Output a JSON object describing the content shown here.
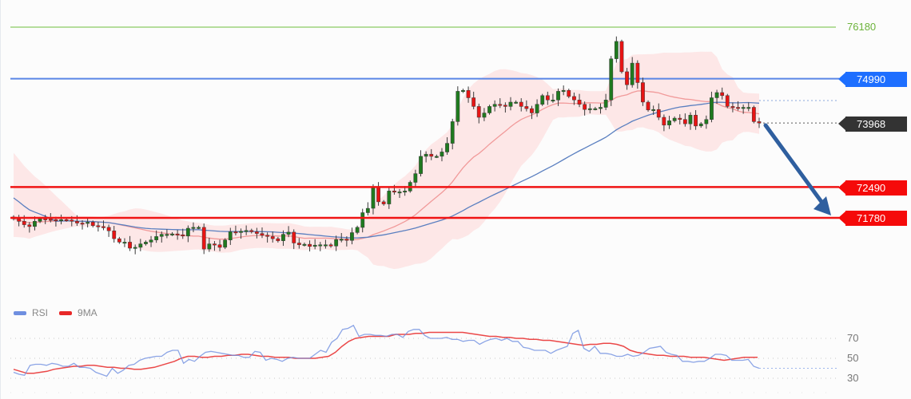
{
  "chart_data": [
    {
      "type": "candlestick",
      "title": "",
      "xlabel": "",
      "ylabel": "",
      "ylim": [
        70400,
        76700
      ],
      "grid": false,
      "overlays": [
        "Bollinger Bands (shaded pink)",
        "moving average (pink)",
        "moving average (blue)"
      ],
      "levels": [
        {
          "name": "target-high",
          "value": 76180,
          "color": "#7cc04b",
          "style": "line",
          "label_style": "plain"
        },
        {
          "name": "resistance",
          "value": 74990,
          "color": "#2f6fe0",
          "style": "line",
          "label_style": "tag"
        },
        {
          "name": "current-price",
          "value": 73968,
          "color": "#333333",
          "style": "dotted",
          "label_style": "tag"
        },
        {
          "name": "support-1",
          "value": 72490,
          "color": "#f01414",
          "style": "line",
          "label_style": "tag"
        },
        {
          "name": "support-2",
          "value": 71780,
          "color": "#f01414",
          "style": "line",
          "label_style": "tag"
        }
      ],
      "annotation": {
        "type": "arrow",
        "direction": "down",
        "from_price": 73968,
        "to_price": 71780,
        "color": "#2a5fa0"
      },
      "candles_close_approx": [
        71760,
        71700,
        71620,
        71580,
        71700,
        71760,
        71750,
        71740,
        71720,
        71740,
        71730,
        71700,
        71660,
        71650,
        71680,
        71600,
        71580,
        71560,
        71480,
        71300,
        71220,
        71220,
        71080,
        71100,
        71180,
        71220,
        71270,
        71350,
        71400,
        71400,
        71410,
        71390,
        71360,
        71540,
        71560,
        71560,
        71060,
        71180,
        71160,
        71100,
        71270,
        71460,
        71440,
        71470,
        71490,
        71460,
        71420,
        71380,
        71350,
        71300,
        71250,
        71400,
        71450,
        71200,
        71160,
        71170,
        71120,
        71150,
        71160,
        71160,
        71130,
        71280,
        71290,
        71260,
        71440,
        71560,
        71900,
        72000,
        72490,
        72150,
        72100,
        72400,
        72380,
        72380,
        72400,
        72600,
        72800,
        73200,
        73250,
        73200,
        73200,
        73300,
        73500,
        74000,
        74700,
        74720,
        74550,
        74350,
        74100,
        74200,
        74350,
        74400,
        74380,
        74350,
        74450,
        74450,
        74350,
        74300,
        74200,
        74400,
        74600,
        74500,
        74500,
        74700,
        74720,
        74580,
        74500,
        74400,
        74280,
        74300,
        74300,
        74330,
        74500,
        75450,
        75850,
        75150,
        74850,
        75350,
        74900,
        74450,
        74270,
        74280,
        74100,
        73920,
        74020,
        74080,
        74050,
        73950,
        74150,
        73900,
        73950,
        74050,
        74550,
        74670,
        74600,
        74350,
        74330,
        74320,
        74330,
        74330,
        74000,
        73968
      ]
    },
    {
      "type": "line",
      "title": "",
      "legend": [
        "RSI",
        "9MA"
      ],
      "legend_position": "top-left",
      "ylim": [
        20,
        80
      ],
      "yticks": [
        30,
        50,
        70
      ],
      "grid": "dotted at 30/50/70",
      "series": [
        {
          "name": "RSI",
          "color": "#6f8fe0",
          "values": [
            36,
            34,
            33,
            43,
            44,
            44,
            43,
            45,
            44,
            42,
            42,
            45,
            41,
            41,
            40,
            36,
            34,
            32,
            40,
            35,
            38,
            43,
            44,
            48,
            50,
            51,
            52,
            52,
            56,
            58,
            58,
            45,
            49,
            47,
            52,
            56,
            57,
            56,
            55,
            54,
            53,
            53,
            51,
            51,
            57,
            56,
            48,
            50,
            49,
            47,
            50,
            51,
            50,
            50,
            50,
            54,
            58,
            56,
            66,
            70,
            79,
            80,
            83,
            72,
            74,
            74,
            73,
            73,
            72,
            74,
            74,
            71,
            77,
            79,
            79,
            73,
            70,
            70,
            70,
            71,
            69,
            69,
            67,
            68,
            68,
            64,
            67,
            69,
            70,
            68,
            70,
            67,
            67,
            61,
            60,
            58,
            58,
            58,
            55,
            58,
            60,
            62,
            75,
            78,
            60,
            57,
            62,
            55,
            55,
            54,
            52,
            52,
            54,
            52,
            53,
            56,
            60,
            61,
            62,
            56,
            54,
            53,
            47,
            47,
            46,
            47,
            47,
            50,
            54,
            54,
            53,
            48,
            48,
            48,
            49,
            42,
            40
          ]
        },
        {
          "name": "9MA",
          "color": "#e82828",
          "values": [
            39,
            37,
            35,
            35,
            36,
            37,
            39,
            40,
            41,
            42,
            42,
            43,
            43,
            42,
            41,
            41,
            40,
            40,
            39,
            39,
            40,
            41,
            43,
            45,
            47,
            50,
            52,
            52,
            51,
            51,
            52,
            52,
            53,
            53,
            54,
            54,
            53,
            52,
            52,
            51,
            51,
            51,
            50,
            50,
            50,
            50,
            51,
            52,
            56,
            62,
            67,
            70,
            71,
            72,
            72,
            72,
            72,
            74,
            74,
            74,
            75,
            75,
            76,
            76,
            76,
            76,
            76,
            76,
            75,
            74,
            73,
            72,
            72,
            71,
            71,
            70,
            70,
            69,
            69,
            68,
            68,
            67,
            66,
            65,
            64,
            63,
            64,
            64,
            65,
            65,
            64,
            62,
            58,
            56,
            55,
            54,
            53,
            53,
            52,
            52,
            52,
            51,
            51,
            51,
            50,
            49,
            48,
            49,
            50,
            51,
            51,
            51
          ]
        }
      ]
    }
  ],
  "price_labels": {
    "target_high": "76180",
    "resistance": "74990",
    "current": "73968",
    "support_1": "72490",
    "support_2": "71780"
  },
  "legend": {
    "rsi_label": "RSI",
    "ma_label": "9MA",
    "rsi_color": "#6f8fe0",
    "ma_color": "#e82828"
  },
  "rsi_ticks": {
    "t70": "70",
    "t50": "50",
    "t30": "30"
  },
  "colors": {
    "bull": "#1f7a1f",
    "bear": "#e81414",
    "band_fill": "#fde3e3",
    "ma_fast": "#f19a9a",
    "ma_slow": "#5a7fc0"
  }
}
